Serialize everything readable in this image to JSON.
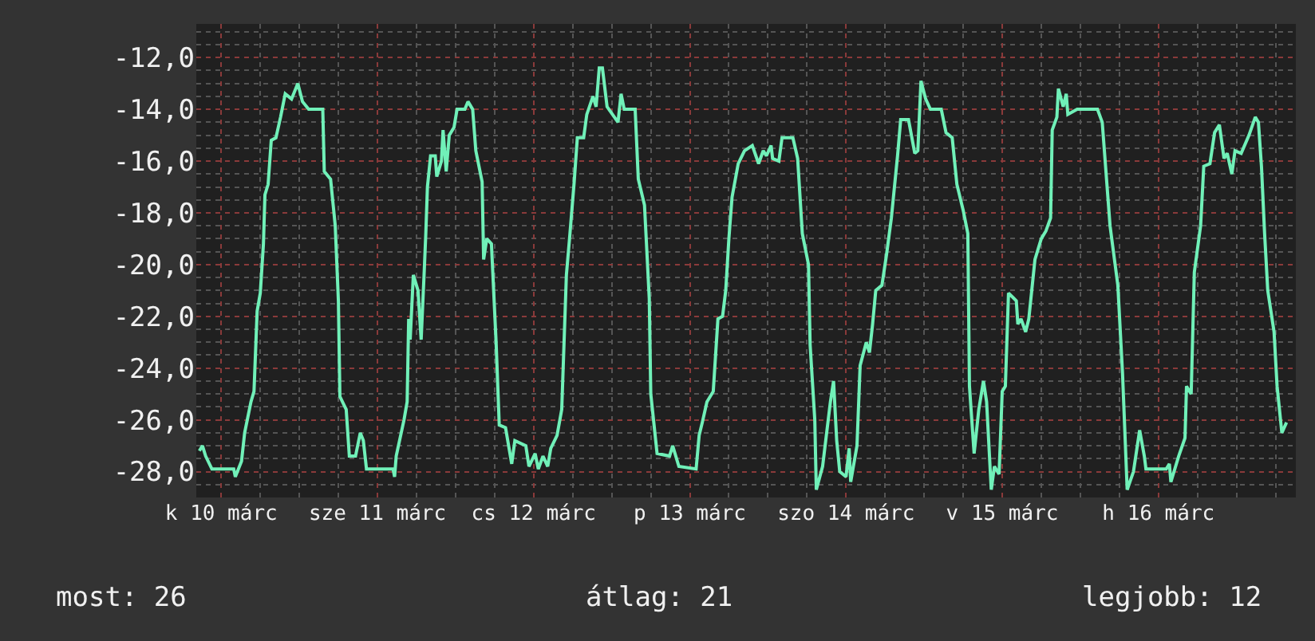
{
  "chart_data": {
    "type": "line",
    "xlim": [
      "--03-10T08:10",
      "--03-17T09:07"
    ],
    "ylim": [
      -29,
      -10.7
    ],
    "xticks": [
      {
        "value": "--03-10T12:00",
        "label": "k 10 márc"
      },
      {
        "value": "--03-11T12:00",
        "label": "sze 11 márc"
      },
      {
        "value": "--03-12T12:00",
        "label": "cs 12 márc"
      },
      {
        "value": "--03-13T12:00",
        "label": "p 13 márc"
      },
      {
        "value": "--03-14T12:00",
        "label": "szo 14 márc"
      },
      {
        "value": "--03-15T12:00",
        "label": "v 15 márc"
      },
      {
        "value": "--03-16T12:00",
        "label": "h 16 márc"
      }
    ],
    "yticks": [
      {
        "value": -28,
        "label": "-28,0"
      },
      {
        "value": -26,
        "label": "-26,0"
      },
      {
        "value": -24,
        "label": "-24,0"
      },
      {
        "value": -22,
        "label": "-22,0"
      },
      {
        "value": -20,
        "label": "-20,0"
      },
      {
        "value": -18,
        "label": "-18,0"
      },
      {
        "value": -16,
        "label": "-16,0"
      },
      {
        "value": -14,
        "label": "-14,0"
      },
      {
        "value": -12,
        "label": "-12,0"
      }
    ],
    "grid": true,
    "marker": "none",
    "line_style": "solid",
    "annotations": [
      "most: 26",
      "átlag: 21",
      "legjobb: 12"
    ],
    "series": [
      {
        "color": "#70f0b8",
        "x": [
          "--03-10T08:38",
          "--03-10T09:07",
          "--03-10T09:36",
          "--03-10T10:34",
          "--03-10T13:55",
          "--03-10T14:10",
          "--03-10T15:07",
          "--03-10T15:36",
          "--03-10T16:34",
          "--03-10T17:02",
          "--03-10T17:31",
          "--03-10T18:00",
          "--03-10T18:29",
          "--03-10T18:43",
          "--03-10T19:12",
          "--03-10T19:41",
          "--03-10T20:24",
          "--03-10T21:07",
          "--03-10T21:50",
          "--03-10T22:48",
          "--03-10T23:46",
          "--03-11T00:29",
          "--03-11T01:26",
          "--03-11T03:36",
          "--03-11T03:50",
          "--03-11T04:48",
          "--03-11T05:31",
          "--03-11T06:00",
          "--03-11T06:14",
          "--03-11T07:12",
          "--03-11T07:41",
          "--03-11T08:38",
          "--03-11T09:22",
          "--03-11T09:50",
          "--03-11T10:19",
          "--03-11T14:24",
          "--03-11T14:38",
          "--03-11T14:53",
          "--03-11T16:05",
          "--03-11T16:34",
          "--03-11T16:48",
          "--03-11T17:02",
          "--03-11T17:31",
          "--03-11T18:14",
          "--03-11T18:43",
          "--03-11T19:12",
          "--03-11T19:26",
          "--03-11T19:41",
          "--03-11T20:10",
          "--03-11T20:53",
          "--03-11T21:07",
          "--03-11T21:50",
          "--03-11T22:05",
          "--03-11T22:34",
          "--03-11T23:02",
          "--03-11T23:46",
          "--03-12T00:14",
          "--03-12T01:26",
          "--03-12T01:55",
          "--03-12T02:38",
          "--03-12T03:07",
          "--03-12T04:05",
          "--03-12T04:19",
          "--03-12T04:48",
          "--03-12T05:31",
          "--03-12T06:14",
          "--03-12T06:43",
          "--03-12T07:41",
          "--03-12T08:38",
          "--03-12T09:07",
          "--03-12T10:48",
          "--03-12T11:17",
          "--03-12T12:14",
          "--03-12T12:43",
          "--03-12T13:26",
          "--03-12T14:10",
          "--03-12T14:38",
          "--03-12T15:36",
          "--03-12T16:19",
          "--03-12T17:02",
          "--03-12T17:31",
          "--03-12T18:14",
          "--03-12T18:43",
          "--03-12T19:41",
          "--03-12T20:10",
          "--03-12T21:07",
          "--03-12T21:36",
          "--03-12T22:05",
          "--03-12T22:34",
          "--03-12T23:17",
          "--03-13T00:58",
          "--03-13T01:26",
          "--03-13T01:55",
          "--03-13T03:36",
          "--03-13T04:05",
          "--03-13T05:02",
          "--03-13T05:46",
          "--03-13T06:00",
          "--03-13T06:58",
          "--03-13T08:53",
          "--03-13T09:22",
          "--03-13T10:19",
          "--03-13T12:58",
          "--03-13T13:26",
          "--03-13T13:55",
          "--03-13T14:38",
          "--03-13T15:36",
          "--03-13T16:19",
          "--03-13T17:02",
          "--03-13T17:31",
          "--03-13T18:00",
          "--03-13T18:29",
          "--03-13T19:26",
          "--03-13T20:24",
          "--03-13T21:36",
          "--03-13T22:34",
          "--03-13T23:17",
          "--03-13T23:46",
          "--03-14T00:29",
          "--03-14T00:43",
          "--03-14T01:41",
          "--03-14T02:10",
          "--03-14T03:50",
          "--03-14T04:34",
          "--03-14T05:17",
          "--03-14T06:14",
          "--03-14T06:29",
          "--03-14T07:12",
          "--03-14T07:26",
          "--03-14T08:24",
          "--03-14T08:53",
          "--03-14T09:36",
          "--03-14T10:05",
          "--03-14T10:34",
          "--03-14T11:02",
          "--03-14T12:00",
          "--03-14T12:29",
          "--03-14T12:43",
          "--03-14T13:41",
          "--03-14T14:10",
          "--03-14T15:07",
          "--03-14T15:36",
          "--03-14T16:05",
          "--03-14T16:34",
          "--03-14T17:31",
          "--03-14T18:14",
          "--03-14T18:58",
          "--03-14T19:55",
          "--03-14T20:24",
          "--03-14T21:36",
          "--03-14T22:34",
          "--03-14T23:02",
          "--03-14T23:31",
          "--03-15T00:14",
          "--03-15T00:58",
          "--03-15T02:38",
          "--03-15T03:22",
          "--03-15T04:19",
          "--03-15T05:02",
          "--03-15T06:00",
          "--03-15T06:43",
          "--03-15T06:58",
          "--03-15T07:41",
          "--03-15T08:24",
          "--03-15T09:07",
          "--03-15T09:36",
          "--03-15T10:19",
          "--03-15T10:48",
          "--03-15T11:31",
          "--03-15T12:00",
          "--03-15T12:29",
          "--03-15T12:58",
          "--03-15T14:10",
          "--03-15T14:24",
          "--03-15T14:53",
          "--03-15T15:36",
          "--03-15T16:05",
          "--03-15T17:02",
          "--03-15T18:00",
          "--03-15T18:43",
          "--03-15T19:26",
          "--03-15T19:41",
          "--03-15T20:24",
          "--03-15T20:38",
          "--03-15T21:22",
          "--03-15T21:50",
          "--03-15T22:05",
          "--03-15T23:31",
          "--03-16T02:38",
          "--03-16T03:22",
          "--03-16T04:34",
          "--03-16T05:46",
          "--03-16T06:29",
          "--03-16T07:12",
          "--03-16T08:10",
          "--03-16T09:07",
          "--03-16T09:50",
          "--03-16T10:05",
          "--03-16T13:12",
          "--03-16T13:41",
          "--03-16T13:55",
          "--03-16T15:07",
          "--03-16T16:05",
          "--03-16T16:19",
          "--03-16T17:02",
          "--03-16T17:31",
          "--03-16T18:29",
          "--03-16T18:58",
          "--03-16T19:55",
          "--03-16T20:38",
          "--03-16T21:22",
          "--03-16T22:05",
          "--03-16T22:34",
          "--03-16T23:17",
          "--03-16T23:46",
          "--03-17T00:43",
          "--03-17T01:55",
          "--03-17T02:53",
          "--03-17T03:22",
          "--03-17T03:50",
          "--03-17T04:19",
          "--03-17T04:48",
          "--03-17T05:46",
          "--03-17T06:14",
          "--03-17T06:58",
          "--03-17T07:41"
        ],
        "values": [
          -27.2,
          -27.0,
          -27.4,
          -27.9,
          -27.9,
          -28.2,
          -27.6,
          -26.5,
          -25.3,
          -24.9,
          -21.8,
          -21.1,
          -19.2,
          -17.3,
          -16.9,
          -15.2,
          -15.1,
          -14.3,
          -13.4,
          -13.6,
          -13.0,
          -13.7,
          -14.0,
          -14.0,
          -16.4,
          -16.7,
          -18.5,
          -21.4,
          -25.1,
          -25.6,
          -27.4,
          -27.4,
          -26.5,
          -26.8,
          -27.9,
          -27.9,
          -28.2,
          -27.4,
          -26.0,
          -25.3,
          -22.1,
          -22.9,
          -20.4,
          -21.0,
          -22.9,
          -20.2,
          -18.8,
          -17.0,
          -15.8,
          -15.8,
          -16.6,
          -16.0,
          -14.8,
          -16.4,
          -15.0,
          -14.7,
          -14.0,
          -14.0,
          -13.7,
          -14.0,
          -15.6,
          -16.8,
          -19.8,
          -19.0,
          -19.2,
          -23.0,
          -26.2,
          -26.3,
          -27.7,
          -26.8,
          -27.0,
          -27.8,
          -27.3,
          -27.9,
          -27.4,
          -27.8,
          -27.1,
          -26.6,
          -25.6,
          -20.4,
          -19.0,
          -16.8,
          -15.1,
          -15.1,
          -14.2,
          -13.5,
          -13.9,
          -12.4,
          -12.4,
          -13.9,
          -14.5,
          -13.4,
          -14.0,
          -14.0,
          -16.7,
          -17.7,
          -21.3,
          -25.0,
          -27.3,
          -27.4,
          -27.0,
          -27.8,
          -27.9,
          -26.6,
          -26.1,
          -25.3,
          -24.9,
          -22.1,
          -22.0,
          -21.0,
          -19.0,
          -17.4,
          -16.1,
          -15.6,
          -15.4,
          -16.1,
          -15.6,
          -15.8,
          -15.4,
          -15.9,
          -16.0,
          -15.1,
          -15.1,
          -15.9,
          -18.8,
          -20.0,
          -23.1,
          -26.0,
          -28.7,
          -27.8,
          -26.8,
          -25.3,
          -24.5,
          -26.8,
          -28.0,
          -28.2,
          -27.1,
          -28.4,
          -27.0,
          -23.9,
          -23.0,
          -23.4,
          -22.3,
          -21.0,
          -20.8,
          -19.6,
          -18.2,
          -15.8,
          -14.4,
          -14.4,
          -15.7,
          -15.6,
          -12.9,
          -13.6,
          -14.0,
          -14.0,
          -14.9,
          -15.1,
          -16.9,
          -17.9,
          -18.8,
          -24.7,
          -27.3,
          -25.6,
          -24.5,
          -25.3,
          -28.7,
          -27.8,
          -28.1,
          -24.9,
          -24.7,
          -21.1,
          -21.4,
          -22.3,
          -22.1,
          -22.6,
          -22.1,
          -19.8,
          -19.0,
          -18.7,
          -18.2,
          -14.8,
          -14.3,
          -13.2,
          -13.9,
          -13.4,
          -14.2,
          -14.0,
          -14.0,
          -14.5,
          -18.5,
          -20.8,
          -24.2,
          -28.7,
          -28.0,
          -26.4,
          -27.4,
          -27.9,
          -27.9,
          -27.7,
          -28.4,
          -27.4,
          -26.7,
          -24.7,
          -25.0,
          -20.3,
          -18.5,
          -16.2,
          -16.1,
          -14.9,
          -14.6,
          -15.9,
          -15.7,
          -16.5,
          -15.6,
          -15.7,
          -15.0,
          -14.3,
          -14.5,
          -16.2,
          -18.8,
          -21.0,
          -22.6,
          -24.7,
          -26.5,
          -26.1
        ]
      }
    ]
  }
}
